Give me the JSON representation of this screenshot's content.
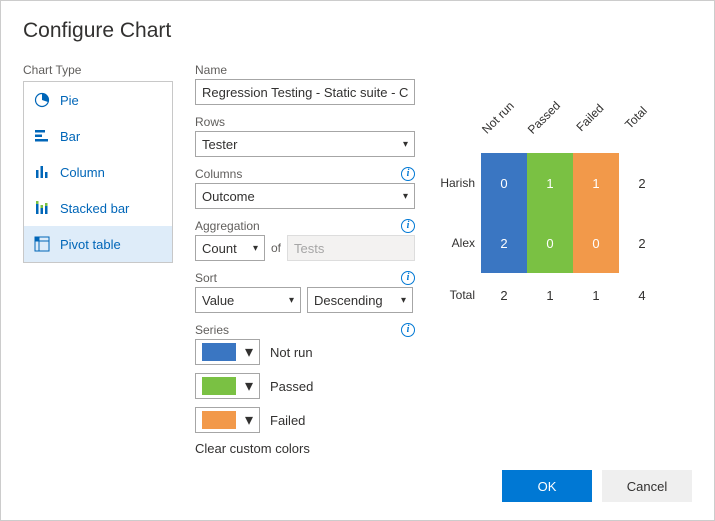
{
  "title": "Configure Chart",
  "chartTypeLabel": "Chart Type",
  "chartTypes": [
    {
      "id": "pie",
      "label": "Pie",
      "selected": false
    },
    {
      "id": "bar",
      "label": "Bar",
      "selected": false
    },
    {
      "id": "column",
      "label": "Column",
      "selected": false
    },
    {
      "id": "stacked",
      "label": "Stacked bar",
      "selected": false
    },
    {
      "id": "pivot",
      "label": "Pivot table",
      "selected": true
    }
  ],
  "name": {
    "label": "Name",
    "value": "Regression Testing - Static suite - Ch"
  },
  "rows": {
    "label": "Rows",
    "value": "Tester"
  },
  "columns": {
    "label": "Columns",
    "value": "Outcome"
  },
  "aggregation": {
    "label": "Aggregation",
    "countValue": "Count",
    "ofLabel": "of",
    "ofValue": "Tests"
  },
  "sort": {
    "label": "Sort",
    "by": "Value",
    "dir": "Descending"
  },
  "seriesLabel": "Series",
  "series": [
    {
      "label": "Not run",
      "color": "#3a76c2"
    },
    {
      "label": "Passed",
      "color": "#7ac143"
    },
    {
      "label": "Failed",
      "color": "#f2994a"
    }
  ],
  "clearColors": "Clear custom colors",
  "pivot": {
    "colHeaders": [
      "Not run",
      "Passed",
      "Failed",
      "Total"
    ],
    "rows": [
      {
        "label": "Harish",
        "cells": [
          {
            "value": "0",
            "color": "#3a76c2"
          },
          {
            "value": "1",
            "color": "#7ac143"
          },
          {
            "value": "1",
            "color": "#f2994a"
          },
          {
            "value": "2",
            "plain": true
          }
        ]
      },
      {
        "label": "Alex",
        "cells": [
          {
            "value": "2",
            "color": "#3a76c2"
          },
          {
            "value": "0",
            "color": "#7ac143"
          },
          {
            "value": "0",
            "color": "#f2994a"
          },
          {
            "value": "2",
            "plain": true
          }
        ]
      }
    ],
    "totalLabel": "Total",
    "totals": [
      "2",
      "1",
      "1",
      "4"
    ]
  },
  "buttons": {
    "ok": "OK",
    "cancel": "Cancel"
  }
}
